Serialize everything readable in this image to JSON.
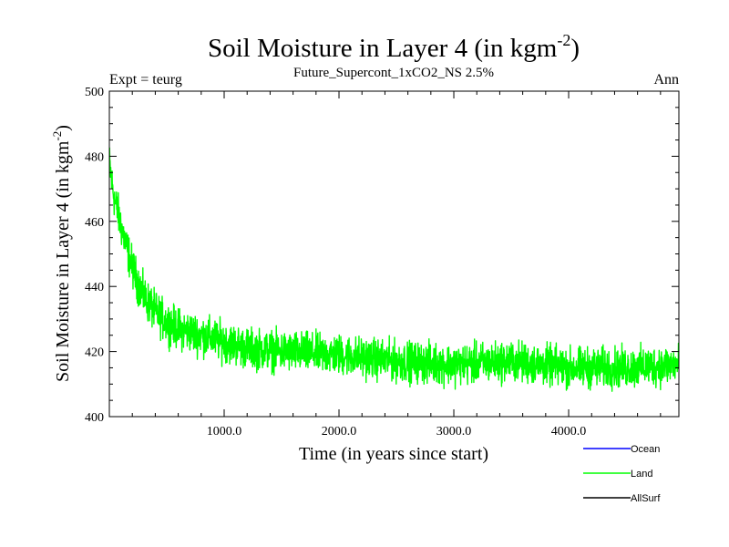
{
  "chart_data": {
    "type": "line",
    "title_main": "Soil Moisture in Layer 4 (in kgm",
    "title_sup": "-2",
    "title_close": ")",
    "subtitle_left": "Expt = teurg",
    "subtitle_center": "Future_Supercont_1xCO2_NS 2.5%",
    "subtitle_right": "Ann",
    "xlabel": "Time (in years since start)",
    "ylabel_main": "Soil Moisture in Layer 4 (in kgm",
    "ylabel_sup": "-2",
    "ylabel_close": ")",
    "xlim": [
      0,
      4960
    ],
    "ylim": [
      400,
      500
    ],
    "x_ticks": [
      {
        "value": 1000,
        "label": "1000.0"
      },
      {
        "value": 2000,
        "label": "2000.0"
      },
      {
        "value": 3000,
        "label": "3000.0"
      },
      {
        "value": 4000,
        "label": "4000.0"
      }
    ],
    "y_ticks": [
      {
        "value": 400,
        "label": "400"
      },
      {
        "value": 420,
        "label": "420"
      },
      {
        "value": 440,
        "label": "440"
      },
      {
        "value": 460,
        "label": "460"
      },
      {
        "value": 480,
        "label": "480"
      },
      {
        "value": 500,
        "label": "500"
      }
    ],
    "series": [
      {
        "name": "Land",
        "color": "#00ff00",
        "noise": 5,
        "x": [
          0,
          25,
          50,
          100,
          150,
          200,
          250,
          300,
          400,
          500,
          600,
          700,
          800,
          1000,
          1200,
          1500,
          2000,
          2500,
          3000,
          3500,
          4000,
          4500,
          4960
        ],
        "y": [
          478,
          471,
          466,
          459,
          452,
          446,
          441,
          437,
          432,
          429,
          427,
          426,
          425,
          423,
          421,
          420,
          419,
          417,
          416,
          417,
          415,
          415,
          416
        ]
      }
    ],
    "legend": [
      {
        "name": "Ocean",
        "color": "#0000ff"
      },
      {
        "name": "Land",
        "color": "#00ff00"
      },
      {
        "name": "AllSurf",
        "color": "#000000"
      }
    ]
  }
}
